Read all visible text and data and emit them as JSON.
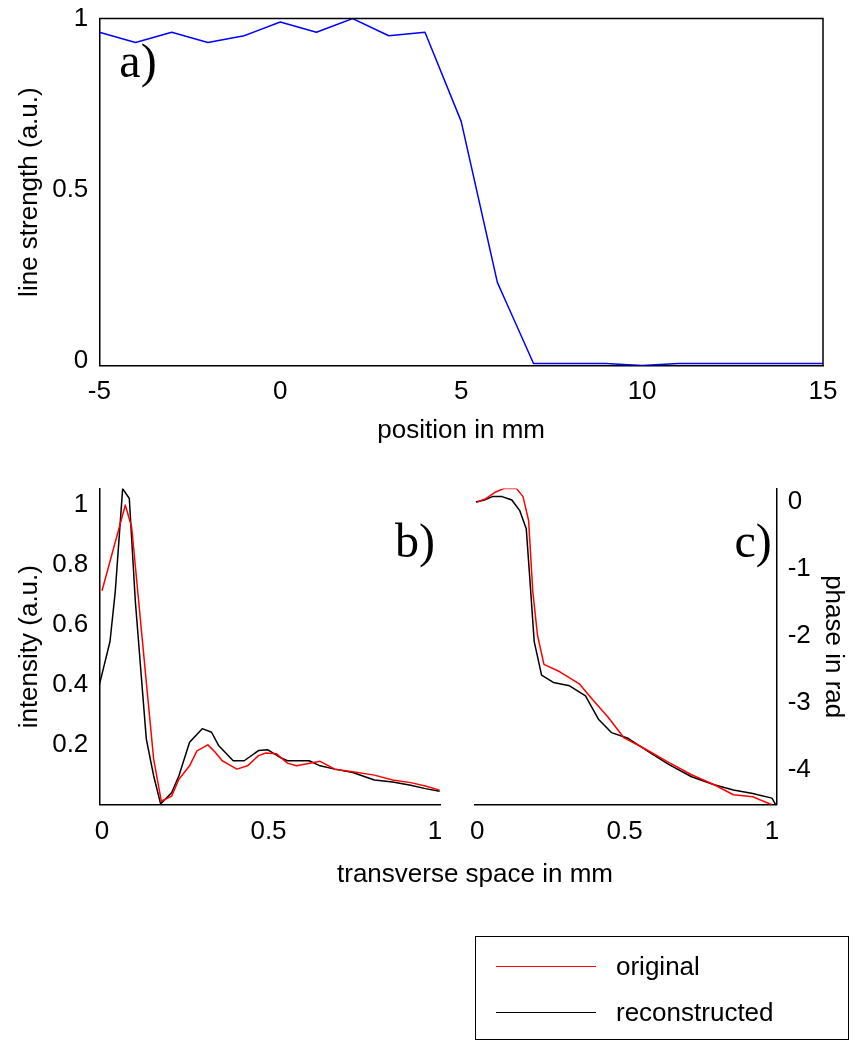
{
  "chart_data": [
    {
      "type": "line",
      "xlabel": "position in mm",
      "ylabel": "line strength (a.u.)",
      "annotations": [
        "a)"
      ],
      "x": [
        -5,
        -4,
        -3,
        -2,
        -1,
        0,
        1,
        2,
        3,
        4,
        5,
        6,
        7,
        8,
        9,
        10,
        11,
        12,
        13,
        14,
        15
      ],
      "xlim": [
        -5,
        15
      ],
      "xticks": [
        -5,
        0,
        5,
        10,
        15
      ],
      "ylim": [
        -0.013,
        1
      ],
      "yticks": [
        0,
        0.5,
        1
      ],
      "series": [
        {
          "color": "#0000ff",
          "values": [
            0.96,
            0.93,
            0.96,
            0.93,
            0.95,
            0.99,
            0.96,
            1.0,
            0.95,
            0.96,
            0.7,
            0.23,
            -0.007,
            -0.007,
            -0.007,
            -0.013,
            -0.007,
            -0.007,
            -0.007,
            -0.007,
            -0.007
          ]
        }
      ]
    },
    {
      "type": "line",
      "xlabel": "transverse space in mm",
      "ylabel": "intensity (a.u.)",
      "annotations": [
        "b)"
      ],
      "xlim": [
        -0.008,
        1.015
      ],
      "xticks": [
        0,
        0.5,
        1
      ],
      "ylim": [
        0,
        1.055
      ],
      "yticks": [
        0.2,
        0.4,
        0.6,
        0.8,
        1
      ],
      "legend": "bottom right",
      "series": [
        {
          "name": "original",
          "color": "#ff0000",
          "x": [
            0,
            0.07,
            0.089,
            0.133,
            0.155,
            0.178,
            0.209,
            0.231,
            0.263,
            0.285,
            0.318,
            0.34,
            0.361,
            0.405,
            0.437,
            0.47,
            0.492,
            0.524,
            0.557,
            0.584,
            0.612,
            0.655,
            0.699,
            0.753,
            0.818,
            0.873,
            0.927,
            0.971,
            1.014
          ],
          "values": [
            0.714,
            1.0,
            0.927,
            0.41,
            0.153,
            0.012,
            0.029,
            0.085,
            0.13,
            0.18,
            0.2,
            0.175,
            0.147,
            0.119,
            0.13,
            0.164,
            0.173,
            0.17,
            0.139,
            0.13,
            0.136,
            0.145,
            0.119,
            0.11,
            0.099,
            0.083,
            0.074,
            0.063,
            0.049
          ]
        },
        {
          "name": "reconstructed",
          "color": "#000000",
          "x": [
            -0.008,
            0.024,
            0.04,
            0.062,
            0.082,
            0.1,
            0.133,
            0.155,
            0.176,
            0.209,
            0.231,
            0.263,
            0.301,
            0.329,
            0.35,
            0.394,
            0.427,
            0.47,
            0.497,
            0.535,
            0.557,
            0.622,
            0.655,
            0.699,
            0.753,
            0.818,
            0.873,
            0.927,
            0.971,
            1.014
          ],
          "values": [
            0.4,
            0.545,
            0.714,
            1.055,
            1.022,
            0.68,
            0.22,
            0.097,
            0.003,
            0.04,
            0.097,
            0.209,
            0.254,
            0.242,
            0.198,
            0.147,
            0.147,
            0.181,
            0.184,
            0.158,
            0.147,
            0.147,
            0.13,
            0.119,
            0.108,
            0.083,
            0.076,
            0.065,
            0.054,
            0.045
          ]
        }
      ]
    },
    {
      "type": "line",
      "y2label": "phase in rad",
      "annotations": [
        "c)"
      ],
      "xlim": [
        -0.008,
        1.016
      ],
      "xticks": [
        0,
        0.5,
        1
      ],
      "y2lim": [
        -4.53,
        0.2
      ],
      "y2ticks": [
        -4,
        -3,
        -2,
        -1,
        0
      ],
      "series": [
        {
          "color": "#ff0000",
          "axis": "y2",
          "x": [
            0,
            0.029,
            0.062,
            0.09,
            0.133,
            0.155,
            0.174,
            0.188,
            0.204,
            0.226,
            0.28,
            0.346,
            0.39,
            0.444,
            0.498,
            0.564,
            0.651,
            0.727,
            0.804,
            0.869,
            0.935,
            1.0
          ],
          "values": [
            0,
            0.05,
            0.15,
            0.2,
            0.2,
            0.08,
            -0.28,
            -1.33,
            -1.99,
            -2.43,
            -2.54,
            -2.72,
            -2.95,
            -3.22,
            -3.53,
            -3.68,
            -3.9,
            -4.08,
            -4.23,
            -4.38,
            -4.41,
            -4.53
          ]
        },
        {
          "color": "#000000",
          "axis": "y2",
          "x": [
            -0.005,
            0.024,
            0.051,
            0.084,
            0.117,
            0.144,
            0.166,
            0.177,
            0.193,
            0.218,
            0.258,
            0.313,
            0.367,
            0.411,
            0.455,
            0.509,
            0.586,
            0.651,
            0.727,
            0.804,
            0.869,
            0.935,
            1.0,
            1.013
          ],
          "values": [
            0,
            0.03,
            0.08,
            0.08,
            0.03,
            -0.13,
            -0.4,
            -1.08,
            -2.09,
            -2.59,
            -2.7,
            -2.75,
            -2.9,
            -3.25,
            -3.45,
            -3.53,
            -3.75,
            -3.93,
            -4.11,
            -4.23,
            -4.31,
            -4.36,
            -4.43,
            -4.53
          ]
        }
      ]
    }
  ]
}
